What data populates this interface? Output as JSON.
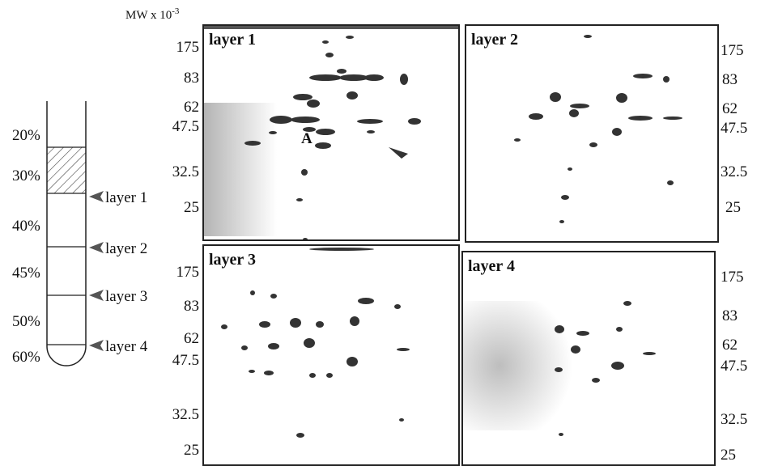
{
  "header": {
    "mw_prefix": "MW x 10",
    "mw_exp": "-3"
  },
  "gradient": {
    "percents": [
      "20%",
      "30%",
      "40%",
      "45%",
      "50%",
      "60%"
    ],
    "layer_arrows": [
      "layer 1",
      "layer 2",
      "layer 3",
      "layer 4"
    ]
  },
  "gels": [
    {
      "title": "layer 1",
      "marker": "A"
    },
    {
      "title": "layer 2"
    },
    {
      "title": "layer 3"
    },
    {
      "title": "layer 4"
    }
  ],
  "mw_ticks": [
    "175",
    "83",
    "62",
    "47.5",
    "32.5",
    "25"
  ],
  "colors": {
    "ink": "#222222",
    "spot": "#333333",
    "hatch": "#444444"
  }
}
